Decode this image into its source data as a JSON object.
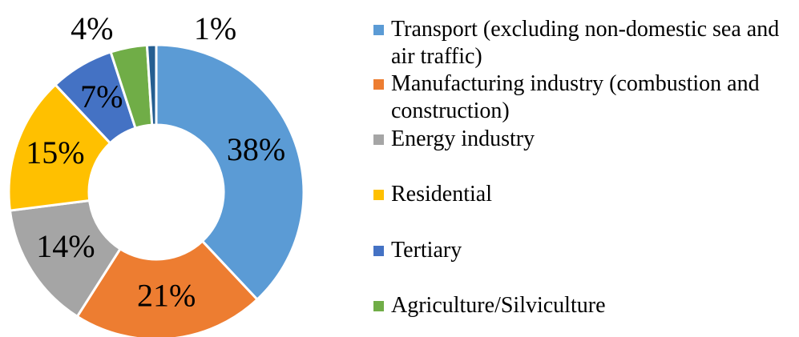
{
  "chart_data": {
    "type": "donut",
    "categories": [
      "Transport (excluding non-domestic sea and air traffic)",
      "Manufacturing industry (combustion and construction)",
      "Energy industry",
      "Residential",
      "Tertiary",
      "Agriculture/Silviculture",
      null
    ],
    "values": [
      38,
      21,
      14,
      15,
      7,
      4,
      1
    ],
    "value_labels": [
      "38%",
      "21%",
      "14%",
      "15%",
      "7%",
      "4%",
      "1%"
    ],
    "colors": [
      "#5b9bd5",
      "#ed7d31",
      "#a5a5a5",
      "#ffc000",
      "#4472c4",
      "#70ad47",
      "#255e91"
    ],
    "legend": "right"
  }
}
